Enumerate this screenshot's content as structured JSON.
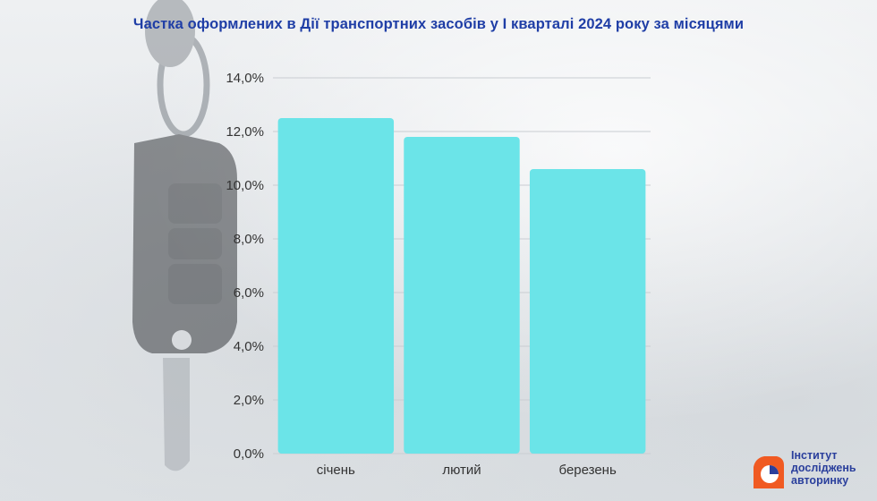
{
  "title": "Частка оформлених в Дії транспортних засобів у I кварталі 2024 року за місяцями",
  "colors": {
    "bar": "#6be4e8",
    "title": "#1f3ea6",
    "grid": "#c9cdd2",
    "logo_orange": "#f05a22",
    "logo_blue": "#2a3f9c"
  },
  "chart_data": {
    "type": "bar",
    "title": "Частка оформлених в Дії транспортних засобів у I кварталі 2024 року за місяцями",
    "categories": [
      "січень",
      "лютий",
      "березень"
    ],
    "values": [
      12.5,
      11.8,
      10.6
    ],
    "ylim": [
      0,
      14
    ],
    "yticks": [
      "0,0%",
      "2,0%",
      "4,0%",
      "6,0%",
      "8,0%",
      "10,0%",
      "12,0%",
      "14,0%"
    ],
    "xlabel": "",
    "ylabel": "",
    "grid": true
  },
  "logo": {
    "lines": [
      "Інститут",
      "досліджень",
      "авторинку"
    ],
    "icon": "pie-chart-icon"
  }
}
